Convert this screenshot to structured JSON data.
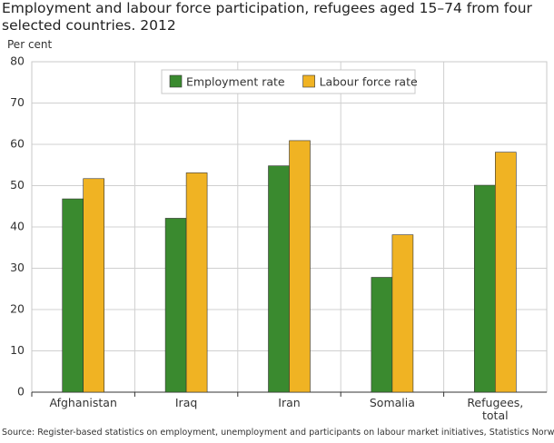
{
  "chart_data": {
    "type": "bar",
    "title": "Employment and labour force participation, refugees aged 15–74 from four selected countries. 2012",
    "y_label": "Per cent",
    "source": "Source: Register-based statistics on employment, unemployment and participants on labour market initiatives, Statistics Norway.",
    "categories": [
      "Afghanistan",
      "Iraq",
      "Iran",
      "Somalia",
      "Refugees, total"
    ],
    "series": [
      {
        "name": "Employment rate",
        "color": "#3a8a2f",
        "values": [
          46.8,
          42.1,
          54.8,
          27.8,
          50.1
        ]
      },
      {
        "name": "Labour force rate",
        "color": "#f0b323",
        "values": [
          51.7,
          53.1,
          60.9,
          38.1,
          58.1
        ]
      }
    ],
    "ylim": [
      0,
      80
    ],
    "yticks": [
      0,
      10,
      20,
      30,
      40,
      50,
      60,
      70,
      80
    ],
    "grid": true,
    "legend": "top"
  }
}
